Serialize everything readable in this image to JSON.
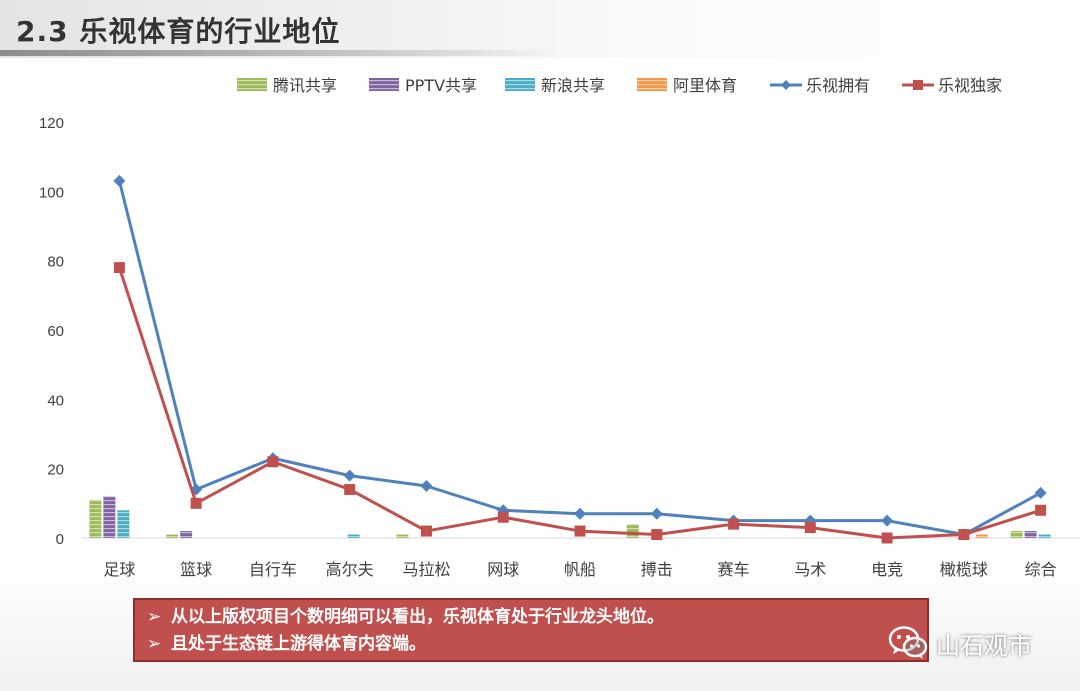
{
  "header": {
    "title": "2.3 乐视体育的行业地位"
  },
  "chart_data": {
    "type": "bar+line",
    "categories": [
      "足球",
      "篮球",
      "自行车",
      "高尔夫",
      "马拉松",
      "网球",
      "帆船",
      "搏击",
      "赛车",
      "马术",
      "电竞",
      "橄榄球",
      "综合"
    ],
    "ylim": [
      0,
      120
    ],
    "yticks": [
      0,
      20,
      40,
      60,
      80,
      100,
      120
    ],
    "legend_position": "top",
    "series": [
      {
        "name": "腾讯共享",
        "kind": "bar",
        "color": "#9bbb59",
        "values": [
          11,
          1,
          0,
          0,
          1,
          0,
          0,
          4,
          0,
          0,
          0,
          0,
          2
        ]
      },
      {
        "name": "PPTV共享",
        "kind": "bar",
        "color": "#8064a2",
        "values": [
          12,
          2,
          0,
          0,
          0,
          0,
          0,
          0,
          0,
          0,
          0,
          0,
          2
        ]
      },
      {
        "name": "新浪共享",
        "kind": "bar",
        "color": "#4bacc6",
        "values": [
          8,
          0,
          0,
          1,
          0,
          0,
          0,
          0,
          0,
          0,
          0,
          0,
          1
        ]
      },
      {
        "name": "阿里体育",
        "kind": "bar",
        "color": "#f79646",
        "values": [
          0,
          0,
          0,
          0,
          0,
          0,
          0,
          0,
          0,
          0,
          0,
          1,
          0
        ]
      },
      {
        "name": "乐视拥有",
        "kind": "line",
        "marker": "diamond",
        "color": "#4f81bd",
        "values": [
          103,
          14,
          23,
          18,
          15,
          8,
          7,
          7,
          5,
          5,
          5,
          1,
          13
        ]
      },
      {
        "name": "乐视独家",
        "kind": "line",
        "marker": "square",
        "color": "#c0504d",
        "values": [
          78,
          10,
          22,
          14,
          2,
          6,
          2,
          1,
          4,
          3,
          0,
          1,
          8
        ]
      }
    ]
  },
  "callout": {
    "arrow": "➢",
    "lines": [
      "从以上版权项目个数明细可以看出，乐视体育处于行业龙头地位。",
      "且处于生态链上游得体育内容端。"
    ]
  },
  "watermark": {
    "icon": "wechat-icon",
    "text": "山石观市"
  }
}
